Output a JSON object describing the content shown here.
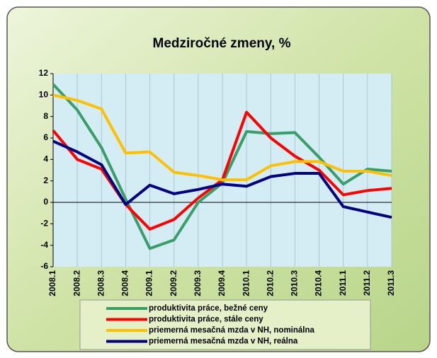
{
  "chart_data": {
    "type": "line",
    "title": "Medziročné zmeny, %",
    "categories": [
      "2008.1",
      "2008.2",
      "2008.3",
      "2008.4",
      "2009.1",
      "2009.2",
      "2009.3",
      "2009.4",
      "2010.1",
      "2010.2",
      "2010.3",
      "2010.4",
      "2011.1",
      "2011.2",
      "2011.3"
    ],
    "series": [
      {
        "name": "produktivita práce, bežné ceny",
        "color": "#3a9e6a",
        "values": [
          11,
          8.6,
          5.1,
          0.3,
          -4.3,
          -3.5,
          0,
          1.8,
          6.6,
          6.4,
          6.5,
          4.2,
          1.7,
          3.1,
          2.9
        ]
      },
      {
        "name": "produktivita práce, stále ceny",
        "color": "#ff0000",
        "values": [
          6.7,
          4.0,
          3.1,
          -0.2,
          -2.5,
          -1.6,
          0.4,
          2.1,
          8.4,
          6.0,
          4.3,
          3.0,
          0.7,
          1.1,
          1.3
        ]
      },
      {
        "name": "priemerná mesačná mzda v NH, nominálna",
        "color": "#ffc000",
        "values": [
          10.0,
          9.5,
          8.7,
          4.6,
          4.7,
          2.8,
          2.5,
          2.1,
          2.1,
          3.4,
          3.8,
          3.8,
          2.9,
          2.9,
          2.5
        ]
      },
      {
        "name": "priemerná mesačná mzda v NH, reálna",
        "color": "#000080",
        "values": [
          5.7,
          4.7,
          3.5,
          -0.2,
          1.6,
          0.8,
          1.2,
          1.7,
          1.5,
          2.4,
          2.7,
          2.7,
          -0.4,
          -0.9,
          -1.4
        ]
      }
    ],
    "ylim": [
      -6,
      12
    ],
    "yticks": [
      -6,
      -4,
      -2,
      0,
      2,
      4,
      6,
      8,
      10,
      12
    ]
  }
}
